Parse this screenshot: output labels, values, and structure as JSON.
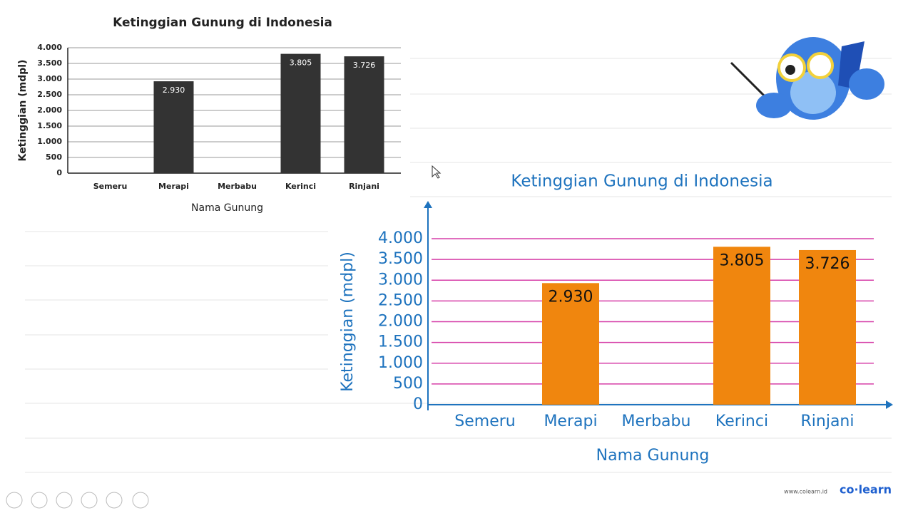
{
  "chart_data": [
    {
      "type": "bar",
      "title": "Ketinggian Gunung di Indonesia",
      "x_label": "Nama Gunung",
      "y_label": "Ketinggian (mdpl)",
      "categories": [
        "Semeru",
        "Merapi",
        "Merbabu",
        "Kerinci",
        "Rinjani"
      ],
      "values": [
        null,
        2930,
        null,
        3805,
        3726
      ],
      "value_labels": [
        null,
        "2.930",
        null,
        "3.805",
        "3.726"
      ],
      "color": "#333333",
      "grid": true,
      "ylim": [
        0,
        4000
      ],
      "yticks": [
        0,
        500,
        {
          "value": 1000,
          "label": "1.000"
        },
        {
          "value": 1500,
          "label": "1.500"
        },
        {
          "value": 2000,
          "label": "2.000"
        },
        {
          "value": 2500,
          "label": "2.500"
        },
        {
          "value": 3000,
          "label": "3.000"
        },
        {
          "value": 3500,
          "label": "3.500"
        },
        {
          "value": 4000,
          "label": "4.000"
        }
      ]
    },
    {
      "type": "bar",
      "title": "Ketinggian Gunung di Indonesia",
      "x_label": "Nama Gunung",
      "y_label": "Ketinggian (mdpl)",
      "categories": [
        "Semeru",
        "Merapi",
        "Merbabu",
        "Kerinci",
        "Rinjani"
      ],
      "values": [
        null,
        2930,
        null,
        3805,
        3726
      ],
      "value_labels": [
        null,
        "2.930",
        null,
        "3.805",
        "3.726"
      ],
      "color": "#f0860e",
      "grid": true,
      "ylim": [
        0,
        4000
      ],
      "yticks": [
        0,
        500,
        {
          "value": 1000,
          "label": "1.000"
        },
        {
          "value": 1500,
          "label": "1.500"
        },
        {
          "value": 2000,
          "label": "2.000"
        },
        {
          "value": 2500,
          "label": "2.500"
        },
        {
          "value": 3000,
          "label": "3.000"
        },
        {
          "value": 3500,
          "label": "3.500"
        },
        {
          "value": 4000,
          "label": "4.000"
        }
      ]
    }
  ],
  "footer": {
    "url": "www.colearn.id",
    "brand": "co·learn"
  }
}
